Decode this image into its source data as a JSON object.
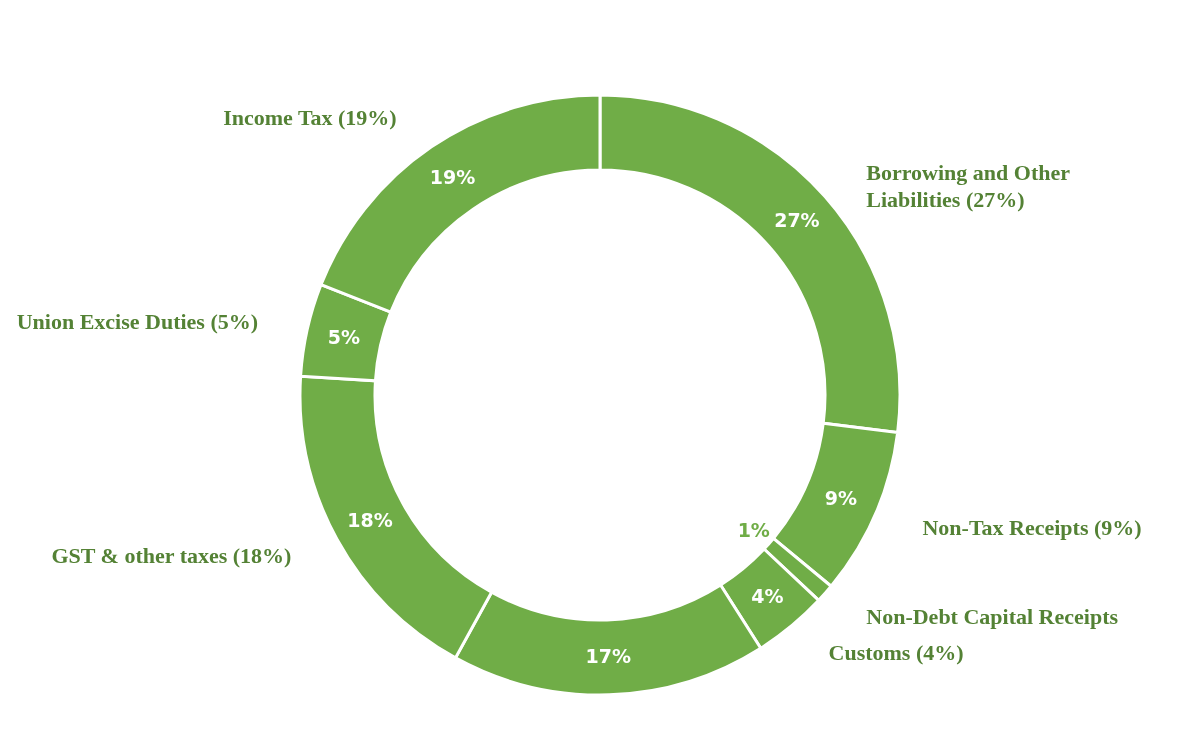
{
  "chart_data": {
    "type": "donut",
    "categories": [
      "Borrowing and Other Liabilities (27%)",
      "Non-Tax Receipts (9%)",
      "Non-Debt Capital Receipts",
      "Customs (4%)",
      null,
      "GST & other taxes (18%)",
      "Union Excise Duties (5%)",
      "Income Tax (19%)"
    ],
    "values": [
      27,
      9,
      1,
      4,
      17,
      18,
      5,
      19
    ],
    "colors": [
      "#70ad47",
      "#70ad47",
      "#70ad47",
      "#70ad47",
      "#70ad47",
      "#70ad47",
      "#70ad47",
      "#70ad47"
    ],
    "value_labels": [
      "27%",
      "9%",
      "1%",
      "4%",
      "17%",
      "18%",
      "5%",
      "19%"
    ]
  }
}
